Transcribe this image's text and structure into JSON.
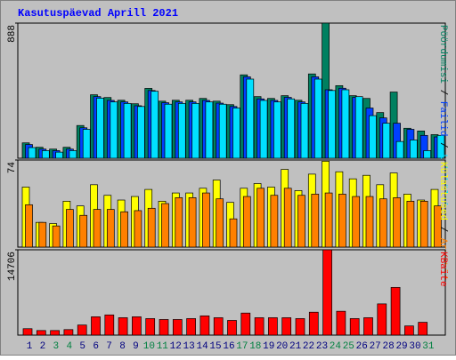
{
  "chart_data": [
    {
      "type": "bar",
      "title": "Kasutuspäevad Aprill 2021",
      "ylim": [
        0,
        888
      ],
      "yticks": [
        888
      ],
      "legend_separator": " / ",
      "series": [
        {
          "name": "Pöördumisi",
          "color": "#008060",
          "values": [
            101,
            72,
            60,
            72,
            215,
            417,
            399,
            381,
            358,
            459,
            375,
            381,
            381,
            393,
            375,
            352,
            548,
            405,
            393,
            411,
            381,
            554,
            888,
            477,
            411,
            393,
            300,
            435,
            197,
            179,
            155
          ]
        },
        {
          "name": "Failid",
          "color": "#0040ff",
          "values": [
            90,
            60,
            50,
            60,
            200,
            405,
            380,
            370,
            345,
            445,
            365,
            370,
            370,
            380,
            362,
            340,
            535,
            390,
            380,
            400,
            370,
            535,
            450,
            460,
            400,
            330,
            265,
            230,
            190,
            150,
            140
          ]
        },
        {
          "name": "Lehekülgi",
          "color": "#00e0ff",
          "values": [
            70,
            50,
            40,
            50,
            190,
            395,
            370,
            360,
            340,
            440,
            355,
            360,
            360,
            370,
            355,
            330,
            520,
            380,
            370,
            390,
            360,
            520,
            445,
            450,
            405,
            280,
            230,
            110,
            120,
            50,
            150
          ]
        }
      ]
    },
    {
      "type": "bar",
      "ylim": [
        0,
        74
      ],
      "yticks": [
        74
      ],
      "legend_separator": " / ",
      "series": [
        {
          "name": "Külastused",
          "color": "#ffff00",
          "values": [
            51,
            21,
            20,
            39,
            35,
            53,
            44,
            40,
            43,
            49,
            39,
            46,
            46,
            50,
            57,
            38,
            50,
            54,
            51,
            66,
            48,
            62,
            73,
            64,
            58,
            61,
            53,
            63,
            45,
            40,
            49
          ]
        },
        {
          "name": "Arvutid",
          "color": "#ff8000",
          "values": [
            36,
            21,
            18,
            32,
            27,
            32,
            32,
            30,
            31,
            33,
            37,
            42,
            42,
            46,
            41,
            24,
            43,
            50,
            44,
            50,
            44,
            45,
            46,
            45,
            43,
            43,
            41,
            42,
            39,
            39,
            35
          ]
        }
      ]
    },
    {
      "type": "bar",
      "ylim": [
        0,
        14706
      ],
      "yticks": [
        14706
      ],
      "categories": [
        "1",
        "2",
        "3",
        "4",
        "5",
        "6",
        "7",
        "8",
        "9",
        "10",
        "11",
        "12",
        "13",
        "14",
        "15",
        "16",
        "17",
        "18",
        "19",
        "20",
        "21",
        "22",
        "23",
        "24",
        "25",
        "26",
        "27",
        "28",
        "29",
        "30",
        "31"
      ],
      "category_colors": [
        "#000080",
        "#000080",
        "#008040",
        "#008040",
        "#000080",
        "#000080",
        "#000080",
        "#000080",
        "#000080",
        "#008040",
        "#008040",
        "#000080",
        "#000080",
        "#000080",
        "#000080",
        "#000080",
        "#008040",
        "#008040",
        "#000080",
        "#000080",
        "#000080",
        "#000080",
        "#000080",
        "#008040",
        "#008040",
        "#000080",
        "#000080",
        "#000080",
        "#000080",
        "#000080",
        "#008040"
      ],
      "series": [
        {
          "name": "KBaite",
          "color": "#ff0000",
          "values": [
            1107,
            790,
            790,
            950,
            1740,
            3160,
            3480,
            3000,
            3160,
            2850,
            2690,
            2690,
            2850,
            3320,
            3000,
            2530,
            3800,
            3000,
            3000,
            3000,
            2850,
            3950,
            14706,
            4110,
            2850,
            3000,
            5380,
            8220,
            1580,
            2210,
            0
          ]
        }
      ]
    }
  ]
}
